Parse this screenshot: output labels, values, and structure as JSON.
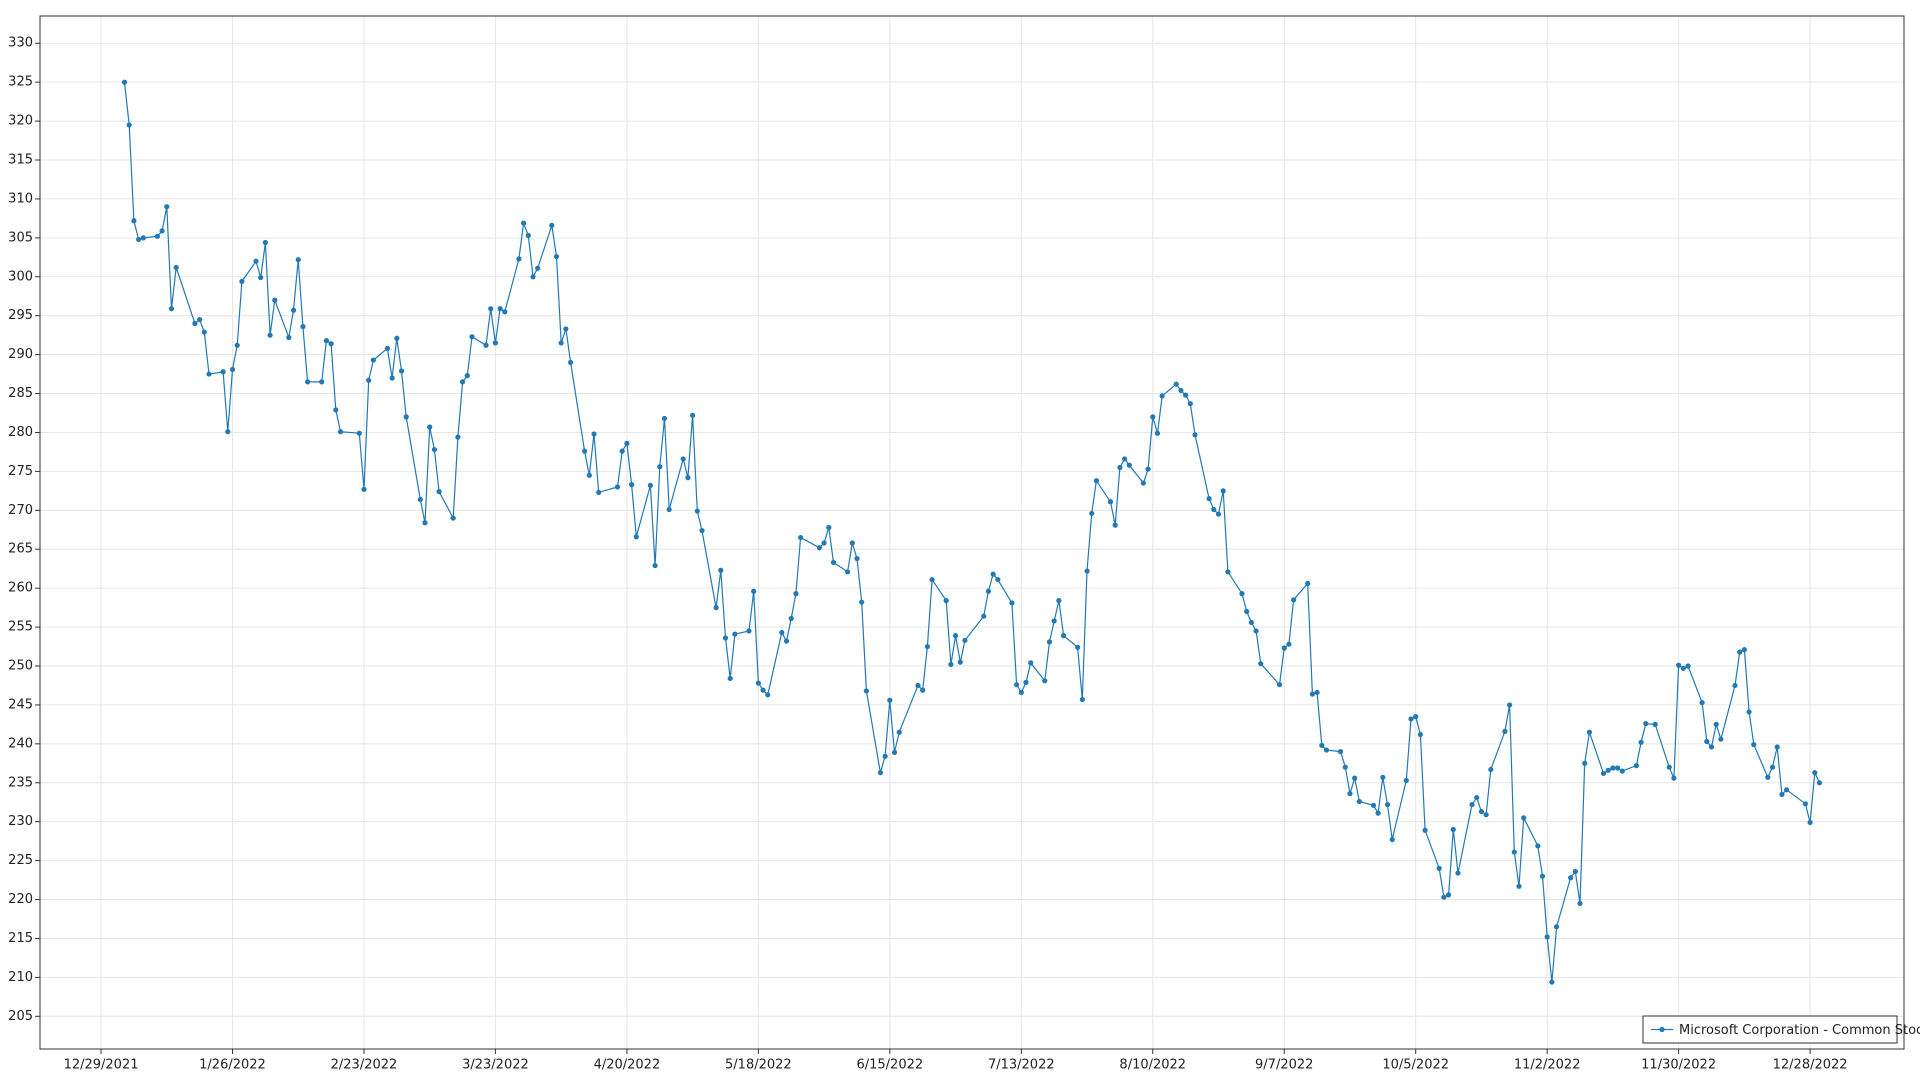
{
  "chart_data": {
    "type": "line",
    "legend_position": "lower right",
    "grid": true,
    "xlim": [
      "12/16/2021",
      "1/17/2023"
    ],
    "xticks": [
      "12/29/2021",
      "1/26/2022",
      "2/23/2022",
      "3/23/2022",
      "4/20/2022",
      "5/18/2022",
      "6/15/2022",
      "7/13/2022",
      "8/10/2022",
      "9/7/2022",
      "10/5/2022",
      "11/2/2022",
      "11/30/2022",
      "12/28/2022"
    ],
    "ylim": [
      200.8,
      333.5
    ],
    "yticks": [
      205,
      210,
      215,
      220,
      225,
      230,
      235,
      240,
      245,
      250,
      255,
      260,
      265,
      270,
      275,
      280,
      285,
      290,
      295,
      300,
      305,
      310,
      315,
      320,
      325,
      330
    ],
    "x": [
      "1/3/2022",
      "1/4/2022",
      "1/5/2022",
      "1/6/2022",
      "1/7/2022",
      "1/10/2022",
      "1/11/2022",
      "1/12/2022",
      "1/13/2022",
      "1/14/2022",
      "1/18/2022",
      "1/19/2022",
      "1/20/2022",
      "1/21/2022",
      "1/24/2022",
      "1/25/2022",
      "1/26/2022",
      "1/27/2022",
      "1/28/2022",
      "1/31/2022",
      "2/1/2022",
      "2/2/2022",
      "2/3/2022",
      "2/4/2022",
      "2/7/2022",
      "2/8/2022",
      "2/9/2022",
      "2/10/2022",
      "2/11/2022",
      "2/14/2022",
      "2/15/2022",
      "2/16/2022",
      "2/17/2022",
      "2/18/2022",
      "2/22/2022",
      "2/23/2022",
      "2/24/2022",
      "2/25/2022",
      "2/28/2022",
      "3/1/2022",
      "3/2/2022",
      "3/3/2022",
      "3/4/2022",
      "3/7/2022",
      "3/8/2022",
      "3/9/2022",
      "3/10/2022",
      "3/11/2022",
      "3/14/2022",
      "3/15/2022",
      "3/16/2022",
      "3/17/2022",
      "3/18/2022",
      "3/21/2022",
      "3/22/2022",
      "3/23/2022",
      "3/24/2022",
      "3/25/2022",
      "3/28/2022",
      "3/29/2022",
      "3/30/2022",
      "3/31/2022",
      "4/1/2022",
      "4/4/2022",
      "4/5/2022",
      "4/6/2022",
      "4/7/2022",
      "4/8/2022",
      "4/11/2022",
      "4/12/2022",
      "4/13/2022",
      "4/14/2022",
      "4/18/2022",
      "4/19/2022",
      "4/20/2022",
      "4/21/2022",
      "4/22/2022",
      "4/25/2022",
      "4/26/2022",
      "4/27/2022",
      "4/28/2022",
      "4/29/2022",
      "5/2/2022",
      "5/3/2022",
      "5/4/2022",
      "5/5/2022",
      "5/6/2022",
      "5/9/2022",
      "5/10/2022",
      "5/11/2022",
      "5/12/2022",
      "5/13/2022",
      "5/16/2022",
      "5/17/2022",
      "5/18/2022",
      "5/19/2022",
      "5/20/2022",
      "5/23/2022",
      "5/24/2022",
      "5/25/2022",
      "5/26/2022",
      "5/27/2022",
      "5/31/2022",
      "6/1/2022",
      "6/2/2022",
      "6/3/2022",
      "6/6/2022",
      "6/7/2022",
      "6/8/2022",
      "6/9/2022",
      "6/10/2022",
      "6/13/2022",
      "6/14/2022",
      "6/15/2022",
      "6/16/2022",
      "6/17/2022",
      "6/21/2022",
      "6/22/2022",
      "6/23/2022",
      "6/24/2022",
      "6/27/2022",
      "6/28/2022",
      "6/29/2022",
      "6/30/2022",
      "7/1/2022",
      "7/5/2022",
      "7/6/2022",
      "7/7/2022",
      "7/8/2022",
      "7/11/2022",
      "7/12/2022",
      "7/13/2022",
      "7/14/2022",
      "7/15/2022",
      "7/18/2022",
      "7/19/2022",
      "7/20/2022",
      "7/21/2022",
      "7/22/2022",
      "7/25/2022",
      "7/26/2022",
      "7/27/2022",
      "7/28/2022",
      "7/29/2022",
      "8/1/2022",
      "8/2/2022",
      "8/3/2022",
      "8/4/2022",
      "8/5/2022",
      "8/8/2022",
      "8/9/2022",
      "8/10/2022",
      "8/11/2022",
      "8/12/2022",
      "8/15/2022",
      "8/16/2022",
      "8/17/2022",
      "8/18/2022",
      "8/19/2022",
      "8/22/2022",
      "8/23/2022",
      "8/24/2022",
      "8/25/2022",
      "8/26/2022",
      "8/29/2022",
      "8/30/2022",
      "8/31/2022",
      "9/1/2022",
      "9/2/2022",
      "9/6/2022",
      "9/7/2022",
      "9/8/2022",
      "9/9/2022",
      "9/12/2022",
      "9/13/2022",
      "9/14/2022",
      "9/15/2022",
      "9/16/2022",
      "9/19/2022",
      "9/20/2022",
      "9/21/2022",
      "9/22/2022",
      "9/23/2022",
      "9/26/2022",
      "9/27/2022",
      "9/28/2022",
      "9/29/2022",
      "9/30/2022",
      "10/3/2022",
      "10/4/2022",
      "10/5/2022",
      "10/6/2022",
      "10/7/2022",
      "10/10/2022",
      "10/11/2022",
      "10/12/2022",
      "10/13/2022",
      "10/14/2022",
      "10/17/2022",
      "10/18/2022",
      "10/19/2022",
      "10/20/2022",
      "10/21/2022",
      "10/24/2022",
      "10/25/2022",
      "10/26/2022",
      "10/27/2022",
      "10/28/2022",
      "10/31/2022",
      "11/1/2022",
      "11/2/2022",
      "11/3/2022",
      "11/4/2022",
      "11/7/2022",
      "11/8/2022",
      "11/9/2022",
      "11/10/2022",
      "11/11/2022",
      "11/14/2022",
      "11/15/2022",
      "11/16/2022",
      "11/17/2022",
      "11/18/2022",
      "11/21/2022",
      "11/22/2022",
      "11/23/2022",
      "11/25/2022",
      "11/28/2022",
      "11/29/2022",
      "11/30/2022",
      "12/1/2022",
      "12/2/2022",
      "12/5/2022",
      "12/6/2022",
      "12/7/2022",
      "12/8/2022",
      "12/9/2022",
      "12/12/2022",
      "12/13/2022",
      "12/14/2022",
      "12/15/2022",
      "12/16/2022",
      "12/19/2022",
      "12/20/2022",
      "12/21/2022",
      "12/22/2022",
      "12/23/2022",
      "12/27/2022",
      "12/28/2022",
      "12/29/2022",
      "12/30/2022"
    ],
    "series": [
      {
        "name": "Microsoft Corporation - Common Stock",
        "color": "#2179b5",
        "values": [
          325,
          319.5,
          307.2,
          304.8,
          305,
          305.2,
          305.9,
          309,
          295.9,
          301.2,
          294,
          294.5,
          292.9,
          287.5,
          287.8,
          280.1,
          288.1,
          291.2,
          299.4,
          302,
          299.9,
          304.4,
          292.5,
          297,
          292.2,
          295.7,
          302.2,
          293.6,
          286.5,
          286.5,
          291.8,
          291.4,
          282.9,
          280.1,
          279.9,
          272.7,
          286.7,
          289.3,
          290.8,
          287,
          292.1,
          287.9,
          282,
          271.4,
          268.4,
          280.7,
          277.8,
          272.4,
          269,
          279.4,
          286.5,
          287.3,
          292.3,
          291.2,
          295.9,
          291.5,
          295.9,
          295.5,
          302.3,
          306.9,
          305.3,
          300,
          301.1,
          306.6,
          302.6,
          291.5,
          293.3,
          289,
          277.6,
          274.5,
          279.8,
          272.3,
          273,
          277.6,
          278.6,
          273.3,
          266.6,
          273.2,
          262.9,
          275.6,
          281.8,
          270.1,
          276.6,
          274.2,
          282.2,
          269.9,
          267.4,
          257.5,
          262.3,
          253.6,
          248.4,
          254.1,
          254.5,
          259.6,
          247.8,
          246.9,
          246.3,
          254.3,
          253.2,
          256.1,
          259.3,
          266.5,
          265.2,
          265.8,
          267.8,
          263.3,
          262.1,
          265.8,
          263.8,
          258.2,
          246.8,
          236.3,
          238.4,
          245.6,
          238.9,
          241.5,
          247.5,
          246.9,
          252.5,
          261.1,
          258.4,
          250.2,
          253.9,
          250.5,
          253.3,
          256.4,
          259.6,
          261.8,
          261.1,
          258.1,
          247.6,
          246.6,
          247.9,
          250.4,
          248.1,
          253.1,
          255.8,
          258.4,
          253.9,
          252.4,
          245.7,
          262.2,
          269.6,
          273.8,
          271.1,
          268.1,
          275.5,
          276.6,
          275.8,
          273.5,
          275.3,
          282,
          279.9,
          284.7,
          286.2,
          285.4,
          284.8,
          283.7,
          279.7,
          271.5,
          270.1,
          269.5,
          272.5,
          262.1,
          259.3,
          257,
          255.6,
          254.5,
          250.3,
          247.6,
          252.3,
          252.8,
          258.5,
          260.6,
          246.4,
          246.6,
          239.8,
          239.2,
          239,
          237,
          233.6,
          235.6,
          232.6,
          232.1,
          231.1,
          235.7,
          232.2,
          227.7,
          235.3,
          243.2,
          243.5,
          241.2,
          228.9,
          224,
          220.3,
          220.6,
          229,
          223.4,
          232.2,
          233.1,
          231.3,
          230.9,
          236.7,
          241.6,
          245,
          226.1,
          221.7,
          230.5,
          226.9,
          223,
          215.2,
          209.4,
          216.5,
          222.8,
          223.6,
          219.5,
          237.5,
          241.5,
          236.2,
          236.6,
          236.9,
          236.9,
          236.5,
          237.2,
          240.2,
          242.6,
          242.5,
          237,
          235.6,
          250.1,
          249.7,
          250,
          245.3,
          240.3,
          239.6,
          242.5,
          240.6,
          247.5,
          251.8,
          252.1,
          244.1,
          239.9,
          235.7,
          237,
          239.6,
          233.5,
          234.1,
          232.3,
          229.9,
          236.3,
          235
        ]
      }
    ]
  }
}
